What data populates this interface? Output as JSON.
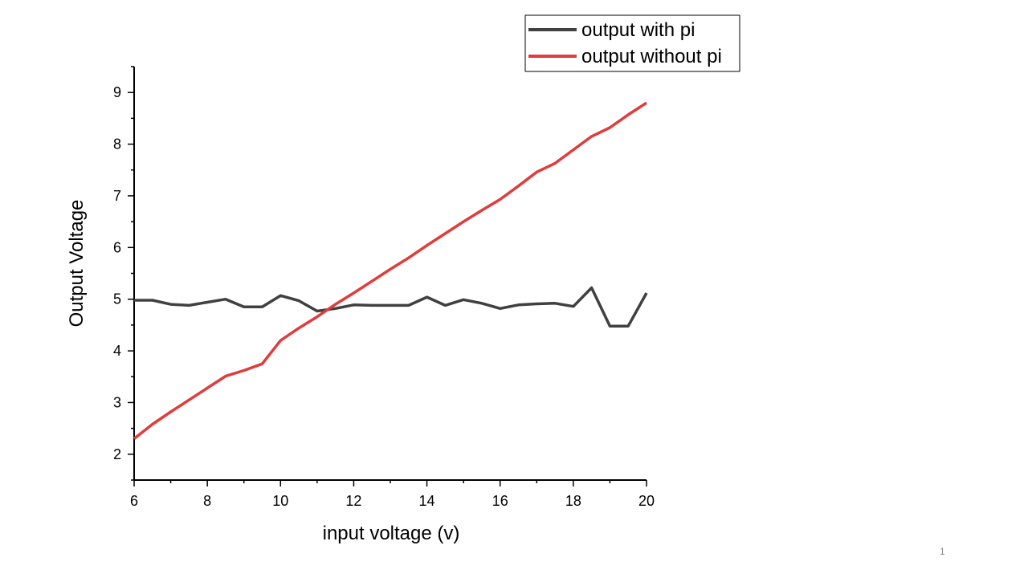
{
  "slide": {
    "number": "1"
  },
  "chart_data": {
    "type": "line",
    "xlabel": "input voltage (v)",
    "ylabel": "Output Voltage",
    "xlim": [
      6,
      20
    ],
    "ylim": [
      1.5,
      9.5
    ],
    "xticks": [
      6,
      8,
      10,
      12,
      14,
      16,
      18,
      20
    ],
    "yticks": [
      2,
      3,
      4,
      5,
      6,
      7,
      8,
      9
    ],
    "grid": false,
    "legend_position": "top-right",
    "series": [
      {
        "name": "output with pi",
        "color": "#404040",
        "x": [
          6,
          6.5,
          7,
          7.5,
          8,
          8.5,
          9,
          9.5,
          10,
          10.5,
          11,
          11.5,
          12,
          12.5,
          13,
          13.5,
          14,
          14.5,
          15,
          15.5,
          16,
          16.5,
          17,
          17.5,
          18,
          18.5,
          19,
          19.5,
          20
        ],
        "y": [
          4.98,
          4.98,
          4.9,
          4.88,
          4.94,
          5.0,
          4.85,
          4.85,
          5.07,
          4.97,
          4.77,
          4.82,
          4.89,
          4.88,
          4.88,
          4.88,
          5.04,
          4.88,
          4.99,
          4.92,
          4.82,
          4.89,
          4.91,
          4.92,
          4.86,
          5.22,
          4.48,
          4.48,
          5.12
        ]
      },
      {
        "name": "output without pi",
        "color": "#e03c3c",
        "x": [
          6,
          6.5,
          7,
          7.5,
          8,
          8.5,
          9,
          9.5,
          10,
          10.5,
          11,
          11.5,
          12,
          12.5,
          13,
          13.5,
          14,
          14.5,
          15,
          15.5,
          16,
          16.5,
          17,
          17.5,
          18,
          18.5,
          19,
          19.5,
          20
        ],
        "y": [
          2.3,
          2.58,
          2.82,
          3.05,
          3.28,
          3.51,
          3.62,
          3.75,
          4.2,
          4.44,
          4.66,
          4.9,
          5.12,
          5.35,
          5.58,
          5.8,
          6.04,
          6.27,
          6.5,
          6.72,
          6.93,
          7.19,
          7.46,
          7.63,
          7.89,
          8.15,
          8.32,
          8.57,
          8.8
        ]
      }
    ]
  }
}
